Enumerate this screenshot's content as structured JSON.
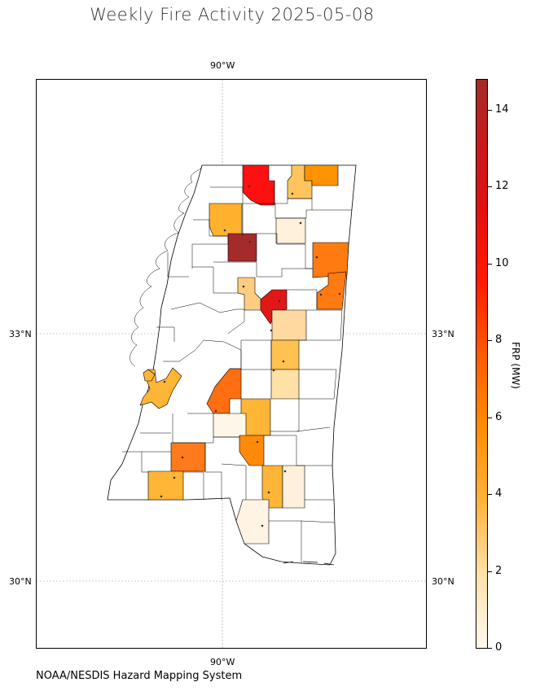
{
  "title": "Weekly Fire Activity 2025-05-08",
  "credit": "NOAA/NESDIS Hazard Mapping System",
  "axes": {
    "lon_top": "90°W",
    "lon_bottom": "90°W",
    "lat_33_left": "33°N",
    "lat_33_right": "33°N",
    "lat_30_left": "30°N",
    "lat_30_right": "30°N"
  },
  "colorbar": {
    "label": "FRP (MW)",
    "ticks": [
      "0",
      "2",
      "4",
      "6",
      "8",
      "10",
      "12",
      "14"
    ],
    "min": 0,
    "max": 14.8,
    "colors": [
      "#fff8ee",
      "#ffe1a8",
      "#ffb23a",
      "#ff8c00",
      "#ff5a00",
      "#ff1a00",
      "#a52a2a"
    ]
  }
}
